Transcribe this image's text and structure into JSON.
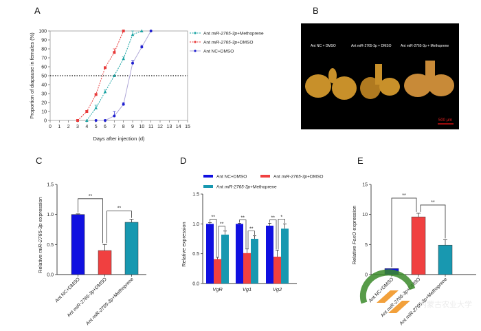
{
  "panels": {
    "A": "A",
    "B": "B",
    "C": "C",
    "D": "D",
    "E": "E"
  },
  "photo": {
    "labels": [
      "Ant NC + DMSO",
      "Ant miR-2765-3p + DMSO",
      "Ant miR-2765-3p + Methoprene"
    ],
    "scale_bar": "500 μm",
    "background": "#000000",
    "tissue_color": "#c8902a",
    "scale_color": "#d01010"
  },
  "watermark": {
    "text": "内蒙古农业大学 新闻中心"
  },
  "chart_data": [
    {
      "panel": "A",
      "type": "line",
      "xlabel": "Days after injection (d)",
      "ylabel": "Proportion of diapause in females (%)",
      "xlim": [
        0,
        15
      ],
      "ylim": [
        0,
        100
      ],
      "xticks": [
        0,
        1,
        2,
        3,
        4,
        5,
        6,
        7,
        8,
        9,
        10,
        11,
        12,
        13,
        14,
        15
      ],
      "yticks": [
        0,
        10,
        20,
        30,
        40,
        50,
        60,
        70,
        80,
        90,
        100
      ],
      "reference_line": 50,
      "legend": "right",
      "series": [
        {
          "name": [
            {
              "t": "Ant "
            },
            {
              "t": "miR-2765-3p",
              "i": true
            },
            {
              "t": "+Methoprene"
            }
          ],
          "color": "#1aa3a3",
          "marker": "triangle",
          "x": [
            4,
            5,
            6,
            7,
            8,
            9,
            10
          ],
          "y": [
            0,
            14,
            32,
            50,
            69,
            96,
            100
          ],
          "err": [
            0,
            3,
            2,
            0,
            2,
            4,
            0
          ]
        },
        {
          "name": [
            {
              "t": "Ant "
            },
            {
              "t": "miR-2765-3p",
              "i": true
            },
            {
              "t": "+DMSO"
            }
          ],
          "color": "#e83a3a",
          "marker": "square",
          "x": [
            3,
            4,
            5,
            6,
            7,
            8
          ],
          "y": [
            0,
            10,
            29,
            59,
            76,
            100
          ],
          "err": [
            0,
            1,
            1,
            1,
            4,
            0
          ]
        },
        {
          "name": [
            {
              "t": "Ant NC+DMSO"
            }
          ],
          "color": "#2020d0",
          "line_color": "#b0a8d8",
          "marker": "circle",
          "x": [
            5,
            6,
            7,
            8,
            9,
            10,
            11
          ],
          "y": [
            0,
            0,
            5,
            18,
            64,
            82,
            100
          ],
          "err": [
            0,
            0,
            5,
            2,
            3,
            2,
            0
          ]
        }
      ]
    },
    {
      "panel": "C",
      "type": "bar",
      "ylabel": [
        {
          "t": "Relative "
        },
        {
          "t": "miR-2765-3p",
          "i": true
        },
        {
          "t": " expression"
        }
      ],
      "ylim": [
        0,
        1.5
      ],
      "yticks": [
        "0.0",
        "0.5",
        "1.0",
        "1.5"
      ],
      "categories": [
        [
          {
            "t": "Ant NC+DMSO"
          }
        ],
        [
          {
            "t": "Ant "
          },
          {
            "t": "miR-2765-3p",
            "i": true
          },
          {
            "t": "+DMSO"
          }
        ],
        [
          {
            "t": "Ant "
          },
          {
            "t": "miR-2765-3p",
            "i": true
          },
          {
            "t": "+Methoprene"
          }
        ]
      ],
      "values": [
        1.0,
        0.4,
        0.87
      ],
      "errors": [
        0.01,
        0.1,
        0.05
      ],
      "colors": [
        "#1010e0",
        "#f04040",
        "#1898b0"
      ],
      "significance": [
        {
          "a": 0,
          "b": 1,
          "label": "**"
        },
        {
          "a": 1,
          "b": 2,
          "label": "**"
        }
      ]
    },
    {
      "panel": "D",
      "type": "bar",
      "ylabel": "Relative expression",
      "ylim": [
        0,
        1.5
      ],
      "yticks": [
        "0.0",
        "0.5",
        "1.0",
        "1.5"
      ],
      "categories": [
        "VgR",
        "Vg1",
        "Vg2"
      ],
      "legend": "top",
      "series": [
        {
          "name": [
            {
              "t": "Ant NC+DMSO"
            }
          ],
          "color": "#1010e0",
          "values": [
            1.0,
            1.0,
            0.97
          ],
          "errors": [
            0.02,
            0.01,
            0.04
          ]
        },
        {
          "name": [
            {
              "t": "Ant "
            },
            {
              "t": "miR-2765-3p",
              "i": true
            },
            {
              "t": "+DMSO"
            }
          ],
          "color": "#f04040",
          "values": [
            0.41,
            0.51,
            0.45
          ],
          "errors": [
            0.03,
            0.07,
            0.11
          ]
        },
        {
          "name": [
            {
              "t": "Ant "
            },
            {
              "t": "miR-2765-3p",
              "i": true
            },
            {
              "t": "+Methoprene"
            }
          ],
          "color": "#1898b0",
          "values": [
            0.82,
            0.75,
            0.92
          ],
          "errors": [
            0.06,
            0.05,
            0.08
          ]
        }
      ],
      "significance": [
        [
          "**",
          "**"
        ],
        [
          "**",
          "**"
        ],
        [
          "**",
          "*"
        ]
      ]
    },
    {
      "panel": "E",
      "type": "bar",
      "ylabel": [
        {
          "t": "Relative "
        },
        {
          "t": "FoxO",
          "i": true
        },
        {
          "t": " expression"
        }
      ],
      "ylim": [
        0,
        15
      ],
      "yticks": [
        "0",
        "5",
        "10",
        "15"
      ],
      "categories": [
        [
          {
            "t": "Ant NC+DMSO"
          }
        ],
        [
          {
            "t": "Ant "
          },
          {
            "t": "miR-2765-3p",
            "i": true
          },
          {
            "t": "+DMSO"
          }
        ],
        [
          {
            "t": "Ant "
          },
          {
            "t": "miR-2765-3p",
            "i": true
          },
          {
            "t": "+Methoprene"
          }
        ]
      ],
      "values": [
        1.0,
        9.6,
        4.9
      ],
      "errors": [
        0.0,
        0.6,
        0.9
      ],
      "colors": [
        "#1010e0",
        "#f04040",
        "#1898b0"
      ],
      "significance": [
        {
          "a": 0,
          "b": 1,
          "label": "**"
        },
        {
          "a": 1,
          "b": 2,
          "label": "**"
        }
      ]
    }
  ]
}
